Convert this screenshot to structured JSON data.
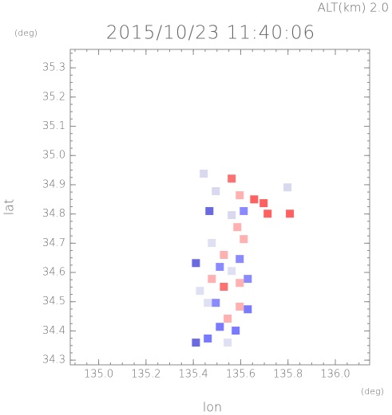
{
  "chart_data": {
    "type": "scatter",
    "header": "ALT(km) 2.0",
    "y_unit": "(deg)",
    "title": "2015/10/23 11:40:06",
    "ylabel": "lat",
    "xlabel": "lon",
    "x_unit": "(deg)",
    "xlim": [
      134.88,
      136.145
    ],
    "ylim": [
      34.284,
      35.363
    ],
    "xticks": [
      {
        "value": 135,
        "label": "135.0"
      },
      135.2,
      135.4,
      135.6,
      135.8,
      {
        "value": 136,
        "label": "136.0"
      }
    ],
    "yticks": [
      34.3,
      34.4,
      34.5,
      34.6,
      34.7,
      34.8,
      34.9,
      {
        "value": 35,
        "label": "35.0"
      },
      35.1,
      35.2,
      35.3
    ],
    "x": [
      135.444,
      135.562,
      135.495,
      135.596,
      135.657,
      135.697,
      135.613,
      135.562,
      135.468,
      135.714,
      135.586,
      135.808,
      135.798,
      135.411,
      135.478,
      135.529,
      135.596,
      135.562,
      135.478,
      135.512,
      135.596,
      135.529,
      135.63,
      135.461,
      135.495,
      135.596,
      135.63,
      135.545,
      135.512,
      135.579,
      135.461,
      135.411,
      135.613,
      135.428,
      135.545
    ],
    "values": [
      34.938,
      34.921,
      34.878,
      34.864,
      34.85,
      34.837,
      34.81,
      34.796,
      34.81,
      34.801,
      34.755,
      34.801,
      34.891,
      34.632,
      34.701,
      34.66,
      34.646,
      34.605,
      34.578,
      34.619,
      34.564,
      34.551,
      34.578,
      34.496,
      34.496,
      34.483,
      34.474,
      34.442,
      34.414,
      34.401,
      34.374,
      34.36,
      34.714,
      34.537,
      34.36
    ],
    "colors": [
      "#d8d8f0",
      "#ff7070",
      "#d8d8f0",
      "#ffb0b0",
      "#ff6060",
      "#ff6060",
      "#8a8aff",
      "#d8d8f0",
      "#6a6ae0",
      "#ff6060",
      "#ffb0b0",
      "#ff6060",
      "#d8d8f0",
      "#6a6ae0",
      "#e0e0f4",
      "#ffb0b0",
      "#8a8aff",
      "#e0e0f4",
      "#ffb0b0",
      "#8a8aff",
      "#ffb0b0",
      "#ff7070",
      "#8a8aff",
      "#e0e0f4",
      "#8a8aff",
      "#ffb0b0",
      "#7a7aff",
      "#ffb0b0",
      "#7a7aff",
      "#7a7aff",
      "#7a7aff",
      "#6a6ae0",
      "#ffb0b0",
      "#e0e0f4",
      "#e0e0f4"
    ]
  }
}
